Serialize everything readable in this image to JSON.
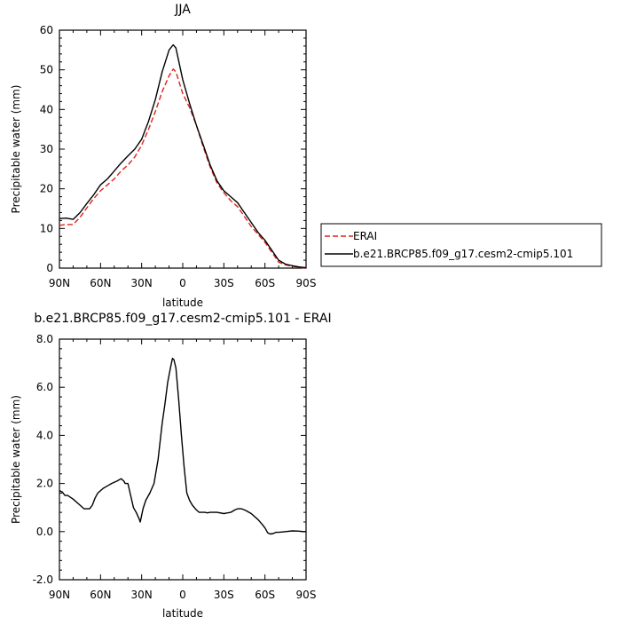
{
  "chart_data": [
    {
      "type": "line",
      "title": "JJA",
      "xlabel": "latitude",
      "ylabel": "Precipitable water (mm)",
      "xlim": [
        90,
        -90
      ],
      "ylim": [
        0,
        60
      ],
      "x_ticks": [
        90,
        60,
        30,
        0,
        -30,
        -60,
        -90
      ],
      "x_tick_labels": [
        "90N",
        "60N",
        "30N",
        "0",
        "30S",
        "60S",
        "90S"
      ],
      "y_ticks": [
        0,
        10,
        20,
        30,
        40,
        50,
        60
      ],
      "y_tick_labels": [
        "0",
        "10",
        "20",
        "30",
        "40",
        "50",
        "60"
      ],
      "grid": false,
      "legend_position": "right",
      "series": [
        {
          "name": "ERAI",
          "color": "#e0201b",
          "dash": "dashed",
          "x": [
            90,
            85,
            80,
            75,
            70,
            65,
            60,
            55,
            50,
            45,
            40,
            35,
            30,
            25,
            20,
            15,
            10,
            7,
            5,
            0,
            -5,
            -10,
            -15,
            -20,
            -25,
            -30,
            -35,
            -40,
            -45,
            -50,
            -55,
            -60,
            -65,
            -70,
            -75,
            -80,
            -85,
            -90
          ],
          "y": [
            10.8,
            11.0,
            11.0,
            12.8,
            15.2,
            17.5,
            19.5,
            21.0,
            22.5,
            24.5,
            26.0,
            28.0,
            31.0,
            35.0,
            39.5,
            44.5,
            48.5,
            50.2,
            49.5,
            44.0,
            40.5,
            36.0,
            30.5,
            25.5,
            21.5,
            19.0,
            17.0,
            15.5,
            13.0,
            10.5,
            8.5,
            6.5,
            4.0,
            1.5,
            0.8,
            0.5,
            0.2,
            0.0
          ]
        },
        {
          "name": "b.e21.BRCP85.f09_g17.cesm2-cmip5.101",
          "color": "#000000",
          "dash": "solid",
          "x": [
            90,
            85,
            80,
            75,
            70,
            65,
            60,
            55,
            50,
            45,
            40,
            35,
            30,
            25,
            20,
            15,
            10,
            7,
            5,
            0,
            -5,
            -10,
            -15,
            -20,
            -25,
            -30,
            -35,
            -40,
            -45,
            -50,
            -55,
            -60,
            -65,
            -70,
            -75,
            -80,
            -85,
            -90
          ],
          "y": [
            12.5,
            12.6,
            12.3,
            14.0,
            16.3,
            18.5,
            21.0,
            22.5,
            24.5,
            26.5,
            28.3,
            30.0,
            32.5,
            37.0,
            42.5,
            49.5,
            55.0,
            56.3,
            55.5,
            47.5,
            41.5,
            36.0,
            31.0,
            26.0,
            22.0,
            19.5,
            18.0,
            16.5,
            14.0,
            11.5,
            9.0,
            7.0,
            4.5,
            2.0,
            1.0,
            0.6,
            0.3,
            0.1
          ]
        }
      ]
    },
    {
      "type": "line",
      "title": "b.e21.BRCP85.f09_g17.cesm2-cmip5.101  -  ERAI",
      "xlabel": "latitude",
      "ylabel": "Precipitable water (mm)",
      "xlim": [
        90,
        -90
      ],
      "ylim": [
        -2,
        8
      ],
      "x_ticks": [
        90,
        60,
        30,
        0,
        -30,
        -60,
        -90
      ],
      "x_tick_labels": [
        "90N",
        "60N",
        "30N",
        "0",
        "30S",
        "60S",
        "90S"
      ],
      "y_ticks": [
        -2,
        0,
        2,
        4,
        6,
        8
      ],
      "y_tick_labels": [
        "-2.0",
        "0.0",
        "2.0",
        "4.0",
        "6.0",
        "8.0"
      ],
      "grid": false,
      "series": [
        {
          "color": "#000000",
          "dash": "solid",
          "x": [
            90,
            88,
            86,
            84,
            80,
            76,
            72,
            70,
            68,
            66,
            64,
            62,
            58,
            55,
            52,
            48,
            45,
            43,
            42,
            40,
            38,
            36,
            34,
            32,
            31,
            29,
            27,
            24,
            21,
            18,
            15,
            13,
            11,
            9,
            7.5,
            6.5,
            5,
            3,
            1,
            -1,
            -3,
            -5,
            -7,
            -10,
            -12,
            -14,
            -16,
            -18,
            -20,
            -25,
            -30,
            -35,
            -38,
            -40,
            -43,
            -46,
            -50,
            -55,
            -58,
            -60,
            -62,
            -64,
            -66,
            -68,
            -70,
            -72,
            -75,
            -80,
            -85,
            -88,
            -90
          ],
          "y": [
            1.7,
            1.65,
            1.5,
            1.5,
            1.35,
            1.15,
            0.95,
            0.95,
            0.95,
            1.1,
            1.4,
            1.6,
            1.8,
            1.9,
            2.0,
            2.1,
            2.2,
            2.1,
            2.0,
            2.0,
            1.5,
            1.0,
            0.8,
            0.55,
            0.4,
            0.95,
            1.3,
            1.6,
            2.0,
            3.0,
            4.5,
            5.3,
            6.2,
            6.8,
            7.2,
            7.15,
            6.8,
            5.5,
            4.0,
            2.7,
            1.6,
            1.3,
            1.1,
            0.9,
            0.8,
            0.8,
            0.8,
            0.78,
            0.8,
            0.8,
            0.75,
            0.8,
            0.9,
            0.95,
            0.95,
            0.88,
            0.75,
            0.5,
            0.3,
            0.15,
            -0.05,
            -0.1,
            -0.08,
            -0.03,
            -0.03,
            -0.02,
            0.0,
            0.03,
            0.02,
            0.0,
            0.0
          ]
        }
      ]
    }
  ]
}
